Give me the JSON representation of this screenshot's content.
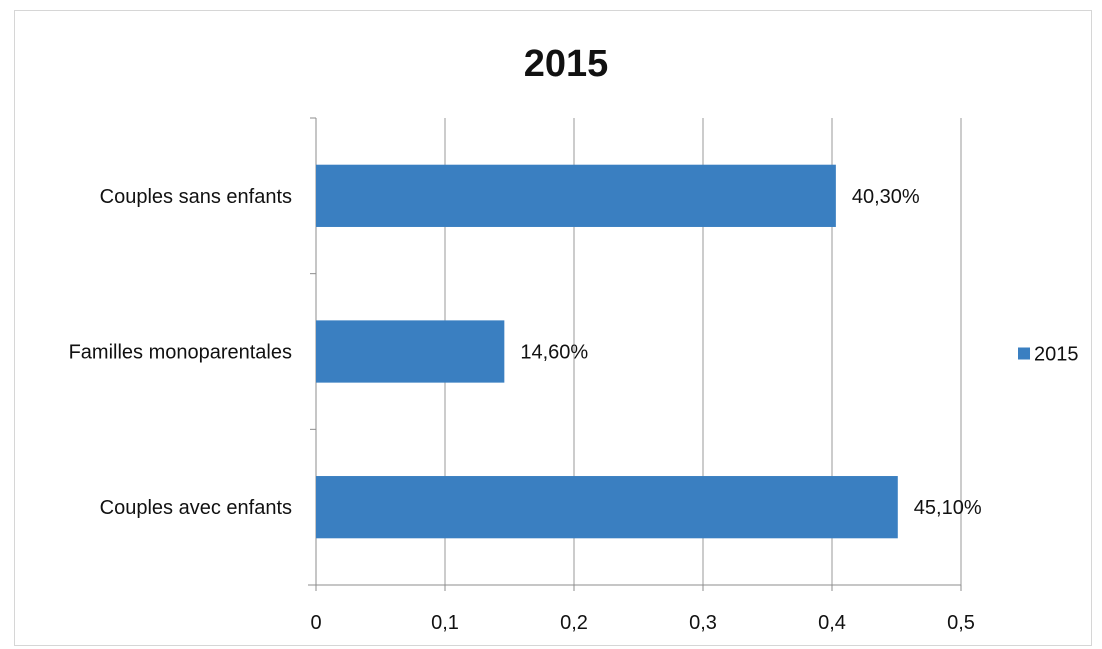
{
  "chart_data": {
    "type": "bar",
    "orientation": "horizontal",
    "title": "2015",
    "categories": [
      "Couples sans enfants",
      "Familles monoparentales",
      "Couples avec enfants"
    ],
    "series": [
      {
        "name": "2015",
        "values": [
          0.403,
          0.146,
          0.451
        ],
        "data_labels": [
          "40,30%",
          "14,60%",
          "45,10%"
        ],
        "color": "#3a7fc1"
      }
    ],
    "xlim": [
      0,
      0.5
    ],
    "x_ticks": [
      0,
      0.1,
      0.2,
      0.3,
      0.4,
      0.5
    ],
    "x_tick_labels": [
      "0",
      "0,1",
      "0,2",
      "0,3",
      "0,4",
      "0,5"
    ],
    "grid": "vertical",
    "legend_position": "right"
  }
}
